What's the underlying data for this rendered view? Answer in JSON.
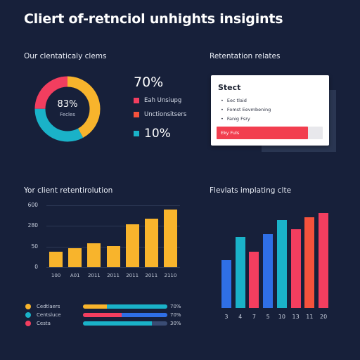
{
  "title": "Cliert of-retnciol unhights insigints",
  "donut_panel": {
    "label": "Our clentaticaly clems",
    "center_pct": "83%",
    "center_sub": "Fecles",
    "slices": [
      {
        "value": 0.42,
        "color": "#f8b42c"
      },
      {
        "value": 0.33,
        "color": "#1ab2c8"
      },
      {
        "value": 0.25,
        "color": "#f23e5f"
      }
    ],
    "big_pct": "70%",
    "legend": [
      {
        "label": "Eah Unsiupg",
        "color": "#f23e5f"
      },
      {
        "label": "Unctionsitsers",
        "color": "#f5523c"
      }
    ],
    "legend_pct": "10%",
    "legend_pct_color": "#1ab2c8"
  },
  "card_panel": {
    "label": "Retentation relates",
    "card_title": "Stect",
    "items": [
      "Eec tlaid",
      "Fomst Eevmbening",
      "Fanig Fsry"
    ],
    "button_label": "Eky Fuls",
    "fill": 0.86
  },
  "bar_panel": {
    "label": "Yor client retentirolution",
    "chart_data": {
      "type": "bar",
      "y_ticks": [
        "600",
        "280",
        "50",
        "0"
      ],
      "categories": [
        "100",
        "A01",
        "2011",
        "2011",
        "2011",
        "2011",
        "2110"
      ],
      "values": [
        95,
        118,
        148,
        128,
        264,
        300,
        352
      ],
      "ylim": [
        0,
        380
      ],
      "color": "#f8b42c"
    }
  },
  "multi_panel": {
    "label": "Flevlats implating clte",
    "chart_data": {
      "type": "bar",
      "categories": [
        "3",
        "4",
        "7",
        "5",
        "10",
        "13",
        "11",
        "20"
      ],
      "values": [
        58,
        87,
        69,
        90,
        107,
        96,
        111,
        116
      ],
      "colors": [
        "#2f6fe6",
        "#1ab2c8",
        "#f23e5f",
        "#2f6fe6",
        "#1ab2c8",
        "#f23e5f",
        "#f5523c",
        "#f23e5f"
      ],
      "ylim": [
        0,
        120
      ]
    }
  },
  "progress_legend": [
    {
      "label": "Cedtlaers",
      "dot": "#f8b42c",
      "pct": "70%",
      "segments": [
        {
          "value": 0.28,
          "color": "#f8b42c"
        },
        {
          "value": 0.72,
          "color": "#1ab2c8"
        }
      ]
    },
    {
      "label": "Centsluce",
      "dot": "#1ab2c8",
      "pct": "70%",
      "segments": [
        {
          "value": 0.46,
          "color": "#f23e5f"
        },
        {
          "value": 0.54,
          "color": "#2f6fe6"
        }
      ]
    },
    {
      "label": "Cesta",
      "dot": "#f23e5f",
      "pct": "30%",
      "segments": [
        {
          "value": 0.82,
          "color": "#1ab2c8"
        }
      ]
    }
  ]
}
